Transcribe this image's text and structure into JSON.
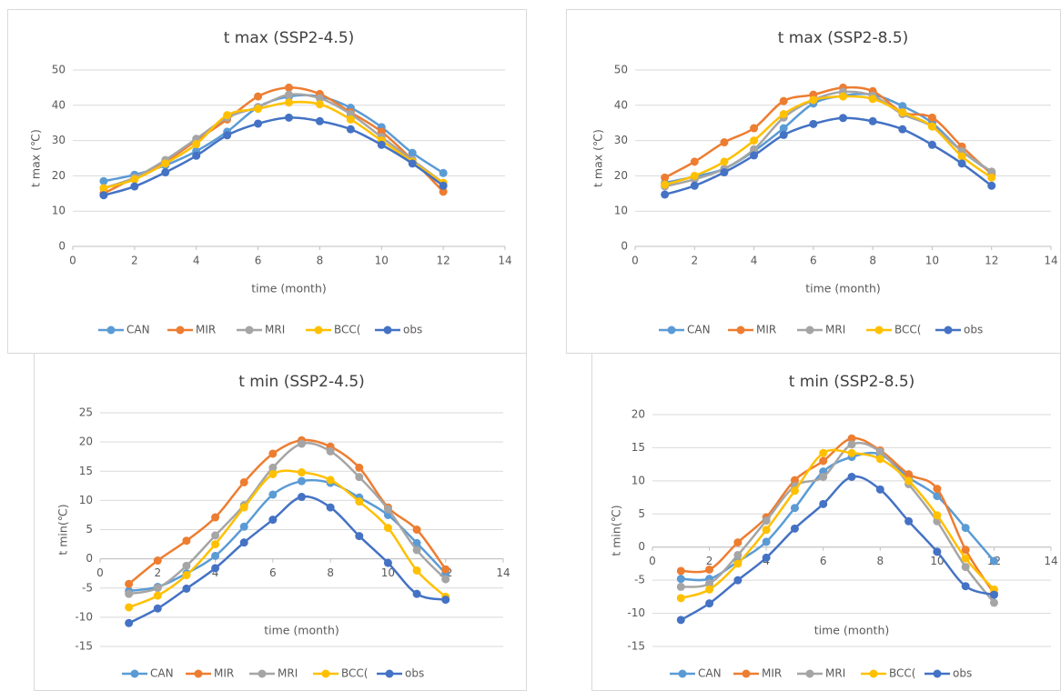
{
  "chart_data": [
    {
      "type": "line",
      "title": "t max (SSP2-4.5)",
      "x_label": "time (month)",
      "y_label": "t max (℃)",
      "x": [
        1,
        2,
        3,
        4,
        5,
        6,
        7,
        8,
        9,
        10,
        11,
        12
      ],
      "xlim": [
        0,
        14
      ],
      "xticks": [
        0,
        2,
        4,
        6,
        8,
        10,
        12,
        14
      ],
      "ylim": [
        0,
        50
      ],
      "yticks": [
        0,
        10,
        20,
        30,
        40,
        50
      ],
      "grid": true,
      "legend": "bottom",
      "series": [
        {
          "name": "CAN",
          "color": "#5b9bd5",
          "values": [
            18.5,
            20.3,
            23,
            27,
            32.5,
            39.5,
            42.5,
            42.5,
            39.3,
            33.8,
            26.5,
            20.8
          ]
        },
        {
          "name": "MIR",
          "color": "#ed7d31",
          "values": [
            15,
            19.5,
            24,
            30,
            36,
            42.5,
            45,
            43.2,
            38,
            32.5,
            24.5,
            15.5
          ]
        },
        {
          "name": "MRI",
          "color": "#a5a5a5",
          "values": [
            16.5,
            19.5,
            24.5,
            30.5,
            36.5,
            39.5,
            43,
            42,
            37.5,
            31,
            24.5,
            18
          ]
        },
        {
          "name": "BCC(",
          "color": "#ffc000",
          "values": [
            16.5,
            19,
            23.5,
            29,
            37.2,
            39,
            40.8,
            40.3,
            36,
            30,
            24,
            18
          ]
        },
        {
          "name": "obs",
          "color": "#4472c4",
          "values": [
            14.5,
            17,
            21,
            25.7,
            31.5,
            34.8,
            36.5,
            35.5,
            33.2,
            28.8,
            23.5,
            17.2
          ]
        }
      ]
    },
    {
      "type": "line",
      "title": "t max (SSP2-8.5)",
      "x_label": "time (month)",
      "y_label": "t max (℃)",
      "x": [
        1,
        2,
        3,
        4,
        5,
        6,
        7,
        8,
        9,
        10,
        11,
        12
      ],
      "xlim": [
        0,
        14
      ],
      "xticks": [
        0,
        2,
        4,
        6,
        8,
        10,
        12,
        14
      ],
      "ylim": [
        0,
        50
      ],
      "yticks": [
        0,
        10,
        20,
        30,
        40,
        50
      ],
      "grid": true,
      "legend": "bottom",
      "series": [
        {
          "name": "CAN",
          "color": "#5b9bd5",
          "values": [
            18,
            19.8,
            22,
            27,
            33.5,
            40.5,
            42.7,
            43,
            39.8,
            35,
            27,
            21
          ]
        },
        {
          "name": "MIR",
          "color": "#ed7d31",
          "values": [
            19.5,
            24,
            29.5,
            33.5,
            41.2,
            43,
            45,
            44,
            38,
            36.5,
            28.3,
            20.5
          ]
        },
        {
          "name": "MRI",
          "color": "#a5a5a5",
          "values": [
            17,
            19,
            22,
            27.5,
            36.5,
            41.5,
            43.8,
            42.7,
            37.5,
            34,
            27,
            21.2
          ]
        },
        {
          "name": "BCC(",
          "color": "#ffc000",
          "values": [
            17.5,
            20,
            24,
            30,
            37.5,
            41.5,
            42.5,
            41.8,
            38,
            34,
            25.5,
            19.5
          ]
        },
        {
          "name": "obs",
          "color": "#4472c4",
          "values": [
            14.7,
            17.2,
            21,
            25.8,
            31.6,
            34.7,
            36.4,
            35.5,
            33.2,
            28.8,
            23.5,
            17.2
          ]
        }
      ]
    },
    {
      "type": "line",
      "title": "t min (SSP2-4.5)",
      "x_label": "time (month)",
      "y_label": "t min(℃)",
      "x": [
        1,
        2,
        3,
        4,
        5,
        6,
        7,
        8,
        9,
        10,
        11,
        12
      ],
      "xlim": [
        0,
        14
      ],
      "xticks": [
        0,
        2,
        4,
        6,
        8,
        10,
        12,
        14
      ],
      "ylim": [
        -15,
        25
      ],
      "yticks": [
        -15,
        -10,
        -5,
        0,
        5,
        10,
        15,
        20,
        25
      ],
      "grid": true,
      "legend": "bottom",
      "series": [
        {
          "name": "CAN",
          "color": "#5b9bd5",
          "values": [
            -5.5,
            -4.8,
            -2.5,
            0.5,
            5.5,
            11,
            13.3,
            13,
            10.5,
            7.5,
            2.7,
            -2.5
          ]
        },
        {
          "name": "MIR",
          "color": "#ed7d31",
          "values": [
            -4.3,
            -0.3,
            3.1,
            7.1,
            13.1,
            18,
            20.3,
            19.2,
            15.6,
            8.8,
            5,
            -1.8
          ]
        },
        {
          "name": "MRI",
          "color": "#a5a5a5",
          "values": [
            -6,
            -5,
            -1.2,
            4,
            9.2,
            15.6,
            19.7,
            18.4,
            14,
            8.5,
            1.5,
            -3.5
          ]
        },
        {
          "name": "BCC(",
          "color": "#ffc000",
          "values": [
            -8.3,
            -6.3,
            -2.8,
            2.5,
            8.8,
            14.5,
            14.8,
            13.5,
            9.8,
            5.3,
            -2,
            -6.5
          ]
        },
        {
          "name": "obs",
          "color": "#4472c4",
          "values": [
            -11,
            -8.5,
            -5.1,
            -1.6,
            2.8,
            6.7,
            10.6,
            8.8,
            3.9,
            -0.7,
            -6,
            -7
          ]
        }
      ]
    },
    {
      "type": "line",
      "title": "t min (SSP2-8.5)",
      "x_label": "time (month)",
      "y_label": "t min(℃)",
      "x": [
        1,
        2,
        3,
        4,
        5,
        6,
        7,
        8,
        9,
        10,
        11,
        12
      ],
      "xlim": [
        0,
        14
      ],
      "xticks": [
        0,
        2,
        4,
        6,
        8,
        10,
        12,
        14
      ],
      "ylim": [
        -15,
        20
      ],
      "yticks": [
        -15,
        -10,
        -5,
        0,
        5,
        10,
        15,
        20
      ],
      "grid": true,
      "legend": "bottom",
      "series": [
        {
          "name": "CAN",
          "color": "#5b9bd5",
          "values": [
            -4.8,
            -4.8,
            -2.2,
            0.8,
            5.9,
            11.4,
            13.6,
            14,
            10.5,
            7.7,
            2.9,
            -2.1
          ]
        },
        {
          "name": "MIR",
          "color": "#ed7d31",
          "values": [
            -3.6,
            -3.4,
            0.7,
            4.5,
            10.1,
            13,
            16.4,
            14.6,
            11,
            8.8,
            -0.4,
            -7
          ]
        },
        {
          "name": "MRI",
          "color": "#a5a5a5",
          "values": [
            -6,
            -5.5,
            -1.2,
            4,
            9.2,
            10.6,
            15.5,
            14.4,
            9.5,
            3.9,
            -3,
            -8.4
          ]
        },
        {
          "name": "BCC(",
          "color": "#ffc000",
          "values": [
            -7.7,
            -6.4,
            -2.5,
            2.6,
            8.5,
            14.2,
            14.2,
            13.3,
            10,
            4.8,
            -1.7,
            -6.4
          ]
        },
        {
          "name": "obs",
          "color": "#4472c4",
          "values": [
            -11,
            -8.5,
            -5,
            -1.6,
            2.8,
            6.5,
            10.6,
            8.7,
            3.9,
            -0.7,
            -5.9,
            -7.2
          ]
        }
      ]
    }
  ]
}
